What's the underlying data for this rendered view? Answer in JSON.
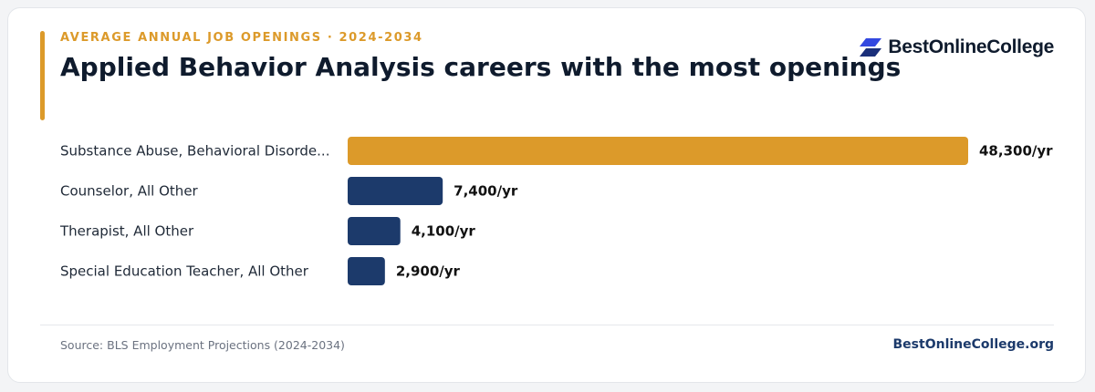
{
  "header": {
    "eyebrow": "AVERAGE ANNUAL JOB OPENINGS · 2024-2034",
    "title": "Applied Behavior Analysis careers with the most openings"
  },
  "logo": {
    "text": "BestOnlineCollege",
    "icon": "stacked-parallelogram-logo-icon"
  },
  "chart_data": {
    "type": "bar",
    "orientation": "horizontal",
    "categories": [
      "Substance Abuse, Behavioral Disorde...",
      "Counselor, All Other",
      "Therapist, All Other",
      "Special Education Teacher, All Other"
    ],
    "values": [
      48300,
      7400,
      4100,
      2900
    ],
    "value_labels": [
      "48,300/yr",
      "7,400/yr",
      "4,100/yr",
      "2,900/yr"
    ],
    "xlim": [
      0,
      48300
    ],
    "grid": false,
    "legend": "none",
    "highlight_index": 0
  },
  "footer": {
    "source": "Source: BLS Employment Projections (2024-2034)",
    "site": "BestOnlineCollege.org"
  },
  "colors": {
    "accent": "#dc9a2a",
    "navy": "#1c3a6b",
    "title": "#0f1b2d",
    "label": "#1f2937",
    "value": "#111111",
    "muted": "#6b7280",
    "logo_blue": "#3348e0",
    "logo_dark": "#1a2f7a"
  }
}
